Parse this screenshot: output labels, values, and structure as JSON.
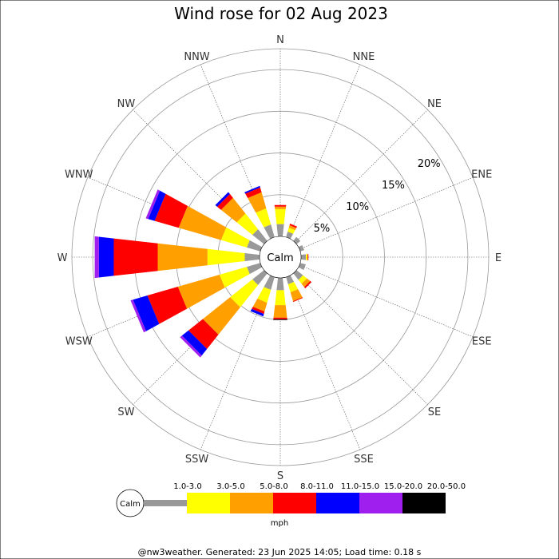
{
  "chart_data": {
    "type": "wind-rose",
    "title": "Wind rose for 02 Aug 2023",
    "directions": [
      "N",
      "NNE",
      "NE",
      "ENE",
      "E",
      "ESE",
      "SE",
      "SSE",
      "S",
      "SSW",
      "SW",
      "WSW",
      "W",
      "WNW",
      "NW",
      "NNW"
    ],
    "radial_ticks": [
      "5%",
      "10%",
      "15%",
      "20%"
    ],
    "radial_values": [
      5,
      10,
      15,
      20
    ],
    "rmax": 22.5,
    "calm_label": "Calm",
    "unit": "mph",
    "bins": [
      {
        "label": "1.0-3.0",
        "color": "#999999"
      },
      {
        "label": "3.0-5.0",
        "color": "#ffff00"
      },
      {
        "label": "5.0-8.0",
        "color": "#ff9f00"
      },
      {
        "label": "8.0-11.0",
        "color": "#ff0000"
      },
      {
        "label": "11.0-15.0",
        "color": "#0000ff"
      },
      {
        "label": "15.0-20.0",
        "color": "#9f1fef"
      },
      {
        "label": "20.0-50.0",
        "color": "#000000"
      }
    ],
    "series": [
      {
        "direction": "N",
        "values": [
          1.5,
          1.8,
          0.3,
          0.2,
          0,
          0,
          0
        ]
      },
      {
        "direction": "NNE",
        "values": [
          0.7,
          0.5,
          0.3,
          0.2,
          0,
          0,
          0
        ]
      },
      {
        "direction": "NE",
        "values": [
          0.6,
          0,
          0,
          0,
          0,
          0,
          0
        ]
      },
      {
        "direction": "ENE",
        "values": [
          0.5,
          0,
          0,
          0,
          0,
          0,
          0
        ]
      },
      {
        "direction": "E",
        "values": [
          0.6,
          0.2,
          0,
          0.1,
          0,
          0,
          0
        ]
      },
      {
        "direction": "ESE",
        "values": [
          0.7,
          0,
          0,
          0,
          0,
          0,
          0
        ]
      },
      {
        "direction": "SE",
        "values": [
          1.0,
          0.6,
          0.5,
          0.2,
          0,
          0,
          0
        ]
      },
      {
        "direction": "SSE",
        "values": [
          0.9,
          1.0,
          1.1,
          0.1,
          0,
          0,
          0
        ]
      },
      {
        "direction": "S",
        "values": [
          1.5,
          1.8,
          1.5,
          0.2,
          0,
          0,
          0.1
        ]
      },
      {
        "direction": "SSW",
        "values": [
          1.6,
          1.6,
          1.1,
          0.3,
          0.3,
          0,
          0
        ]
      },
      {
        "direction": "SW",
        "values": [
          1.8,
          3.4,
          4.2,
          2.2,
          1.0,
          0.3,
          0
        ]
      },
      {
        "direction": "WSW",
        "values": [
          1.7,
          3.4,
          5.2,
          3.8,
          1.8,
          0.3,
          0
        ]
      },
      {
        "direction": "W",
        "values": [
          1.8,
          4.5,
          6.0,
          5.3,
          1.8,
          0.5,
          0
        ]
      },
      {
        "direction": "WNW",
        "values": [
          1.7,
          3.2,
          5.3,
          3.0,
          0.8,
          0.3,
          0
        ]
      },
      {
        "direction": "NW",
        "values": [
          1.8,
          2.4,
          2.4,
          0.6,
          0.3,
          0,
          0
        ]
      },
      {
        "direction": "NNW",
        "values": [
          1.6,
          2.0,
          2.0,
          0.6,
          0.2,
          0,
          0
        ]
      }
    ],
    "grid": true,
    "legend_position": "bottom"
  },
  "footer": "@nw3weather.  Generated: 23 Jun 2025 14:05; Load time: 0.18 s"
}
